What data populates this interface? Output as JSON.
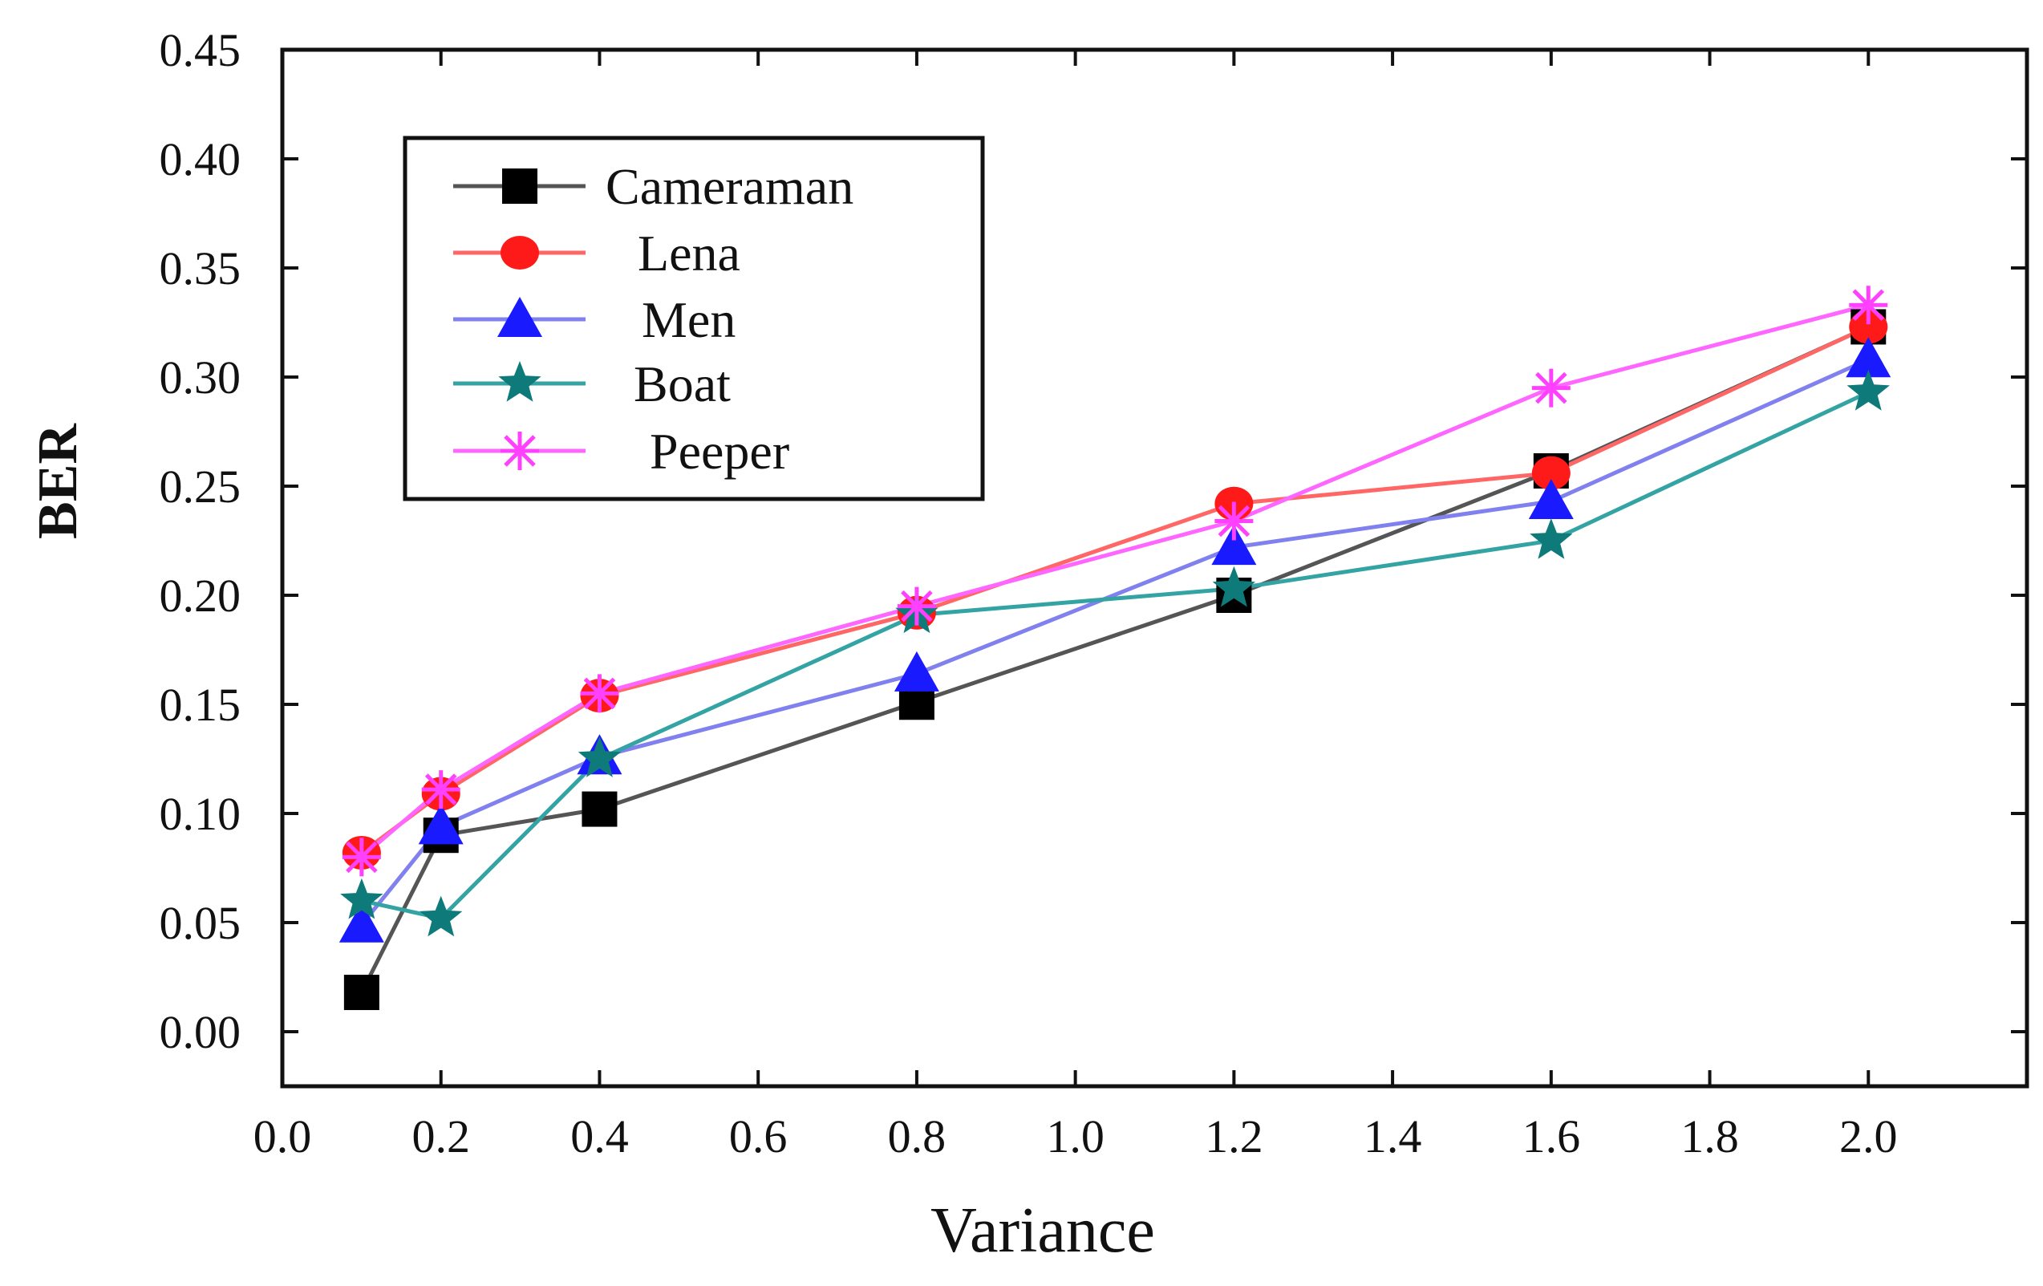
{
  "chart_data": {
    "type": "line",
    "title": "",
    "xlabel": "Variance",
    "ylabel": "BER",
    "xlim": [
      0.0,
      2.2
    ],
    "ylim": [
      -0.025,
      0.45
    ],
    "xticks": [
      0.0,
      0.2,
      0.4,
      0.6,
      0.8,
      1.0,
      1.2,
      1.4,
      1.6,
      1.8,
      2.0
    ],
    "xtick_labels": [
      "0.0",
      "0.2",
      "0.4",
      "0.6",
      "0.8",
      "1.0",
      "1.2",
      "1.4",
      "1.6",
      "1.8",
      "2.0"
    ],
    "yticks": [
      0.0,
      0.05,
      0.1,
      0.15,
      0.2,
      0.25,
      0.3,
      0.35,
      0.4,
      0.45
    ],
    "ytick_labels": [
      "0.00",
      "0.05",
      "0.10",
      "0.15",
      "0.20",
      "0.25",
      "0.30",
      "0.35",
      "0.40",
      "0.45"
    ],
    "x": [
      0.1,
      0.2,
      0.4,
      0.8,
      1.2,
      1.6,
      2.0
    ],
    "legend_position": "top-left",
    "grid": false,
    "series": [
      {
        "name": "Cameraman",
        "color": "#555555",
        "marker_color": "#000000",
        "marker": "square",
        "values": [
          0.018,
          0.09,
          0.102,
          0.151,
          0.2,
          0.257,
          0.323
        ]
      },
      {
        "name": "Lena",
        "color": "#ff6666",
        "marker_color": "#ff1a1a",
        "marker": "circle",
        "values": [
          0.082,
          0.109,
          0.154,
          0.192,
          0.242,
          0.256,
          0.323
        ]
      },
      {
        "name": "Men",
        "color": "#8080ee",
        "marker_color": "#1a1aff",
        "marker": "triangle",
        "values": [
          0.049,
          0.094,
          0.126,
          0.164,
          0.222,
          0.243,
          0.308
        ]
      },
      {
        "name": "Boat",
        "color": "#33a3a3",
        "marker_color": "#0f7a7a",
        "marker": "star",
        "values": [
          0.06,
          0.052,
          0.125,
          0.191,
          0.203,
          0.225,
          0.293
        ]
      },
      {
        "name": "Peeper",
        "color": "#ff66ff",
        "marker_color": "#ff40ff",
        "marker": "asterisk",
        "values": [
          0.08,
          0.111,
          0.155,
          0.195,
          0.234,
          0.295,
          0.333
        ]
      }
    ]
  }
}
